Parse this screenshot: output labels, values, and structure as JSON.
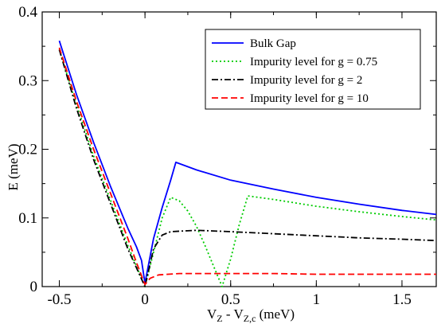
{
  "chart_data": {
    "type": "line",
    "title": "",
    "xlabel": "V_Z - V_Zc (meV)",
    "ylabel": "E (meV)",
    "xlim": [
      -0.6,
      1.7
    ],
    "ylim": [
      0,
      0.4
    ],
    "x_ticks": [
      -0.5,
      0,
      0.5,
      1,
      1.5
    ],
    "x_tick_labels": [
      "-0.5",
      "0",
      "0.5",
      "1",
      "1.5"
    ],
    "y_ticks": [
      0,
      0.1,
      0.2,
      0.3,
      0.4
    ],
    "y_tick_labels": [
      "0",
      "0.1",
      "0.2",
      "0.3",
      "0.4"
    ],
    "grid": false,
    "legend_position": "top-right",
    "series": [
      {
        "name": "Bulk Gap",
        "color": "#0000ff",
        "dash": "solid",
        "x": [
          -0.5,
          -0.4,
          -0.3,
          -0.2,
          -0.1,
          -0.05,
          -0.02,
          0.0,
          0.05,
          0.1,
          0.15,
          0.18,
          0.3,
          0.5,
          0.75,
          1.0,
          1.25,
          1.5,
          1.7
        ],
        "y": [
          0.358,
          0.28,
          0.21,
          0.145,
          0.085,
          0.058,
          0.038,
          0.005,
          0.07,
          0.115,
          0.155,
          0.181,
          0.17,
          0.155,
          0.142,
          0.13,
          0.12,
          0.111,
          0.105
        ]
      },
      {
        "name": "Impurity level for g = 0.75",
        "color": "#00cc00",
        "dash": "dotted",
        "x": [
          -0.5,
          -0.4,
          -0.3,
          -0.2,
          -0.1,
          0.0,
          0.05,
          0.1,
          0.15,
          0.2,
          0.25,
          0.3,
          0.35,
          0.4,
          0.45,
          0.5,
          0.55,
          0.6,
          0.75,
          1.0,
          1.25,
          1.5,
          1.7
        ],
        "y": [
          0.345,
          0.265,
          0.19,
          0.125,
          0.06,
          0.0,
          0.05,
          0.1,
          0.13,
          0.125,
          0.11,
          0.088,
          0.06,
          0.03,
          0.0,
          0.04,
          0.09,
          0.132,
          0.127,
          0.117,
          0.109,
          0.102,
          0.097
        ]
      },
      {
        "name": "Impurity level for g = 2",
        "color": "#000000",
        "dash": "dashdot",
        "x": [
          -0.5,
          -0.4,
          -0.3,
          -0.2,
          -0.1,
          0.0,
          0.05,
          0.1,
          0.15,
          0.3,
          0.5,
          0.75,
          1.0,
          1.25,
          1.5,
          1.7
        ],
        "y": [
          0.345,
          0.26,
          0.185,
          0.12,
          0.055,
          0.0,
          0.055,
          0.075,
          0.08,
          0.082,
          0.08,
          0.077,
          0.074,
          0.071,
          0.069,
          0.067
        ]
      },
      {
        "name": "Impurity level for g = 10",
        "color": "#ff0000",
        "dash": "dashed",
        "x": [
          -0.5,
          -0.4,
          -0.3,
          -0.2,
          -0.1,
          -0.05,
          0.0,
          0.03,
          0.08,
          0.2,
          0.4,
          0.75,
          1.0,
          1.25,
          1.5,
          1.7
        ],
        "y": [
          0.348,
          0.27,
          0.2,
          0.135,
          0.07,
          0.035,
          0.003,
          0.012,
          0.017,
          0.019,
          0.019,
          0.019,
          0.018,
          0.018,
          0.018,
          0.018
        ]
      }
    ]
  }
}
